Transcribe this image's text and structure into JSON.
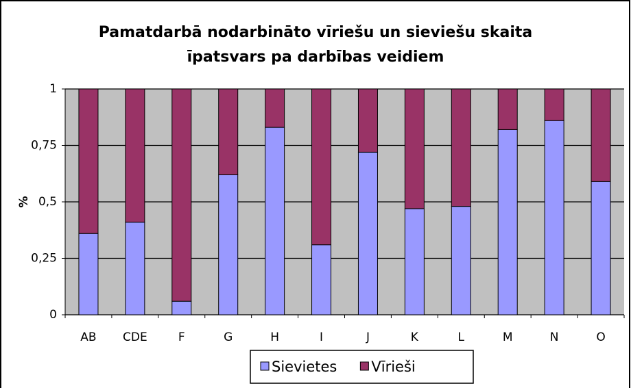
{
  "chart_data": {
    "type": "stacked_bar",
    "title": "Pamatdarbā nodarbināto vīriešu un sieviešu skaita īpatsvars pa darbības veidiem",
    "y_label": "%",
    "categories": [
      "AB",
      "CDE",
      "F",
      "G",
      "H",
      "I",
      "J",
      "K",
      "L",
      "M",
      "N",
      "O"
    ],
    "series": [
      {
        "name": "Sievietes",
        "color": "#9999ff",
        "values": [
          0.36,
          0.41,
          0.06,
          0.62,
          0.83,
          0.31,
          0.72,
          0.47,
          0.48,
          0.82,
          0.86,
          0.59
        ]
      },
      {
        "name": "Vīrieši",
        "color": "#993366",
        "values": [
          0.64,
          0.59,
          0.94,
          0.38,
          0.17,
          0.69,
          0.28,
          0.53,
          0.52,
          0.18,
          0.14,
          0.41
        ]
      }
    ],
    "ylim": [
      0,
      1
    ],
    "yticks": [
      0,
      {
        "value": 0.25,
        "label": "0,25"
      },
      {
        "value": 0.5,
        "label": "0,5"
      },
      {
        "value": 0.75,
        "label": "0,75"
      },
      1
    ],
    "grid": true,
    "legend": "bottom"
  }
}
